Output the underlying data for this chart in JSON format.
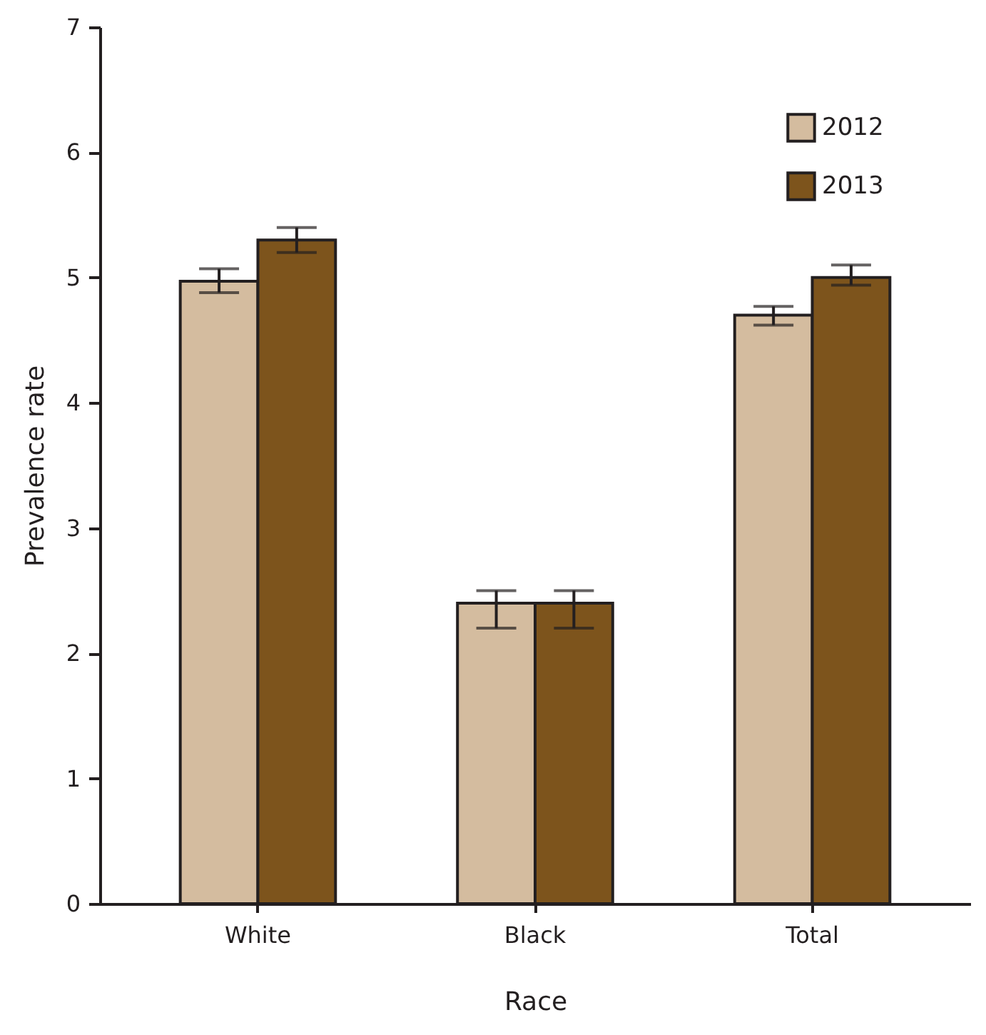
{
  "chart_data": {
    "type": "bar",
    "xlabel": "Race",
    "ylabel": "Prevalence rate",
    "categories": [
      "White",
      "Black",
      "Total"
    ],
    "series": [
      {
        "name": "2012",
        "color": "#d4bc9f",
        "values": [
          4.97,
          2.4,
          4.7
        ],
        "errors": [
          [
            4.88,
            5.07
          ],
          [
            2.2,
            2.5
          ],
          [
            4.62,
            4.77
          ]
        ]
      },
      {
        "name": "2013",
        "color": "#7d541c",
        "values": [
          5.3,
          2.4,
          5.0
        ],
        "errors": [
          [
            5.2,
            5.4
          ],
          [
            2.2,
            2.5
          ],
          [
            4.94,
            5.1
          ]
        ]
      }
    ],
    "ylim": [
      0,
      7
    ],
    "yticks": [
      0,
      1,
      2,
      3,
      4,
      5,
      6,
      7
    ],
    "legend": "top right",
    "grid": false
  }
}
